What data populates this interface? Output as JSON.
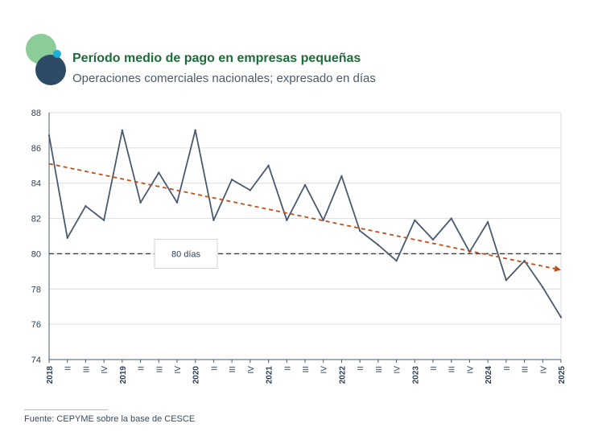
{
  "header": {
    "title": "Período medio de pago en empresas pequeñas",
    "subtitle": "Operaciones comerciales nacionales; expresado en días"
  },
  "source": "Fuente: CEPYME sobre la base de CESCE",
  "colors": {
    "title": "#1f6b3a",
    "series": "#4a5a6e",
    "trend": "#c0501a",
    "reference": "#2f3f55",
    "logo_green": "#8ccc99",
    "logo_navy": "#2d4a66",
    "logo_cyan": "#1ab0d8"
  },
  "chart_data": {
    "type": "line",
    "x": [
      "2018",
      "II",
      "III",
      "IV",
      "2019",
      "II",
      "III",
      "IV",
      "2020",
      "II",
      "III",
      "IV",
      "2021",
      "II",
      "III",
      "IV",
      "2022",
      "II",
      "III",
      "IV",
      "2023",
      "II",
      "III",
      "IV",
      "2024",
      "II",
      "III",
      "IV",
      "2025"
    ],
    "series": [
      {
        "values": [
          86.7,
          80.9,
          82.7,
          81.9,
          87.0,
          82.9,
          84.6,
          82.9,
          87.0,
          81.9,
          84.2,
          83.6,
          85.0,
          81.9,
          83.9,
          81.9,
          84.4,
          81.3,
          80.5,
          79.6,
          81.9,
          80.8,
          82.0,
          80.1,
          81.8,
          78.5,
          79.6,
          78.1,
          76.4
        ]
      }
    ],
    "trendline": {
      "start": 85.1,
      "end": 79.1,
      "style": "dashed-arrow"
    },
    "reference_line": {
      "value": 80,
      "label": "80 días",
      "style": "dashed"
    },
    "ylim": [
      74,
      88
    ],
    "yticks": [
      74,
      76,
      78,
      80,
      82,
      84,
      86,
      88
    ],
    "grid": true,
    "legend": "none"
  }
}
